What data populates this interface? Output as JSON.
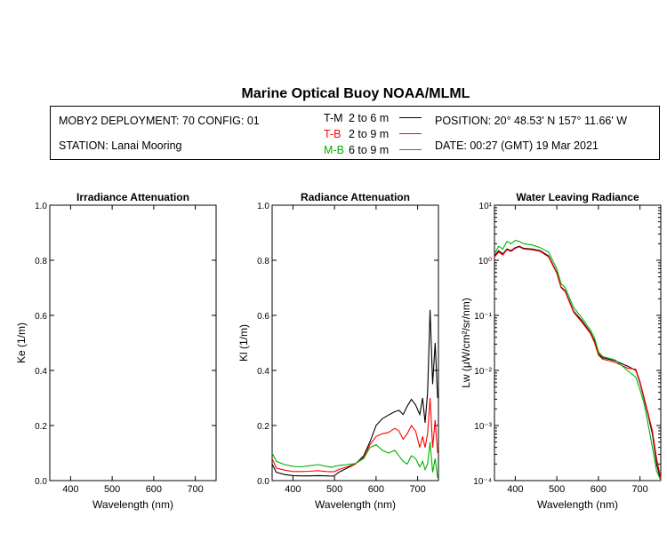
{
  "header": {
    "title": "Marine Optical Buoy NOAA/MLML",
    "deployment": "MOBY2 DEPLOYMENT: 70 CONFIG: 01",
    "station": "STATION: Lanai Mooring",
    "position": "POSITION: 20° 48.53' N   157° 11.66' W",
    "date": "DATE: 00:27 (GMT) 19 Mar 2021"
  },
  "legend": [
    {
      "code": "T-M",
      "range": "2 to 6  m",
      "color": "#000000"
    },
    {
      "code": "T-B",
      "range": "2 to 9  m",
      "color": "#ff0000"
    },
    {
      "code": "M-B",
      "range": "6 to 9  m",
      "color": "#00b000"
    }
  ],
  "chart_data": [
    {
      "type": "line",
      "title": "Irradiance Attenuation",
      "xlabel": "Wavelength (nm)",
      "ylabel": "Ke  (1/m)",
      "xlim": [
        350,
        750
      ],
      "ylim": [
        0,
        1
      ],
      "xticks": [
        "400",
        "500",
        "600",
        "700"
      ],
      "yticks": [
        "0.0",
        "0.2",
        "0.4",
        "0.6",
        "0.8",
        "1.0"
      ],
      "series": []
    },
    {
      "type": "line",
      "title": "Radiance Attenuation",
      "xlabel": "Wavelength (nm)",
      "ylabel": "Kl  (1/m)",
      "xlim": [
        350,
        750
      ],
      "ylim": [
        0,
        1
      ],
      "xticks": [
        "400",
        "500",
        "600",
        "700"
      ],
      "yticks": [
        "0.0",
        "0.2",
        "0.4",
        "0.6",
        "0.8",
        "1.0"
      ],
      "series": [
        {
          "name": "T-M",
          "color": "#000000",
          "x": [
            350,
            360,
            380,
            400,
            420,
            440,
            460,
            480,
            495,
            500,
            510,
            530,
            550,
            570,
            585,
            600,
            615,
            630,
            645,
            655,
            665,
            675,
            685,
            695,
            705,
            712,
            718,
            724,
            730,
            736,
            742,
            748
          ],
          "y": [
            0.06,
            0.03,
            0.022,
            0.018,
            0.017,
            0.017,
            0.018,
            0.017,
            0.016,
            0.018,
            0.03,
            0.045,
            0.06,
            0.09,
            0.14,
            0.2,
            0.225,
            0.238,
            0.25,
            0.255,
            0.24,
            0.27,
            0.295,
            0.275,
            0.24,
            0.3,
            0.21,
            0.32,
            0.62,
            0.35,
            0.5,
            0.3
          ]
        },
        {
          "name": "T-B",
          "color": "#ff0000",
          "x": [
            350,
            360,
            380,
            400,
            420,
            440,
            460,
            480,
            495,
            500,
            510,
            530,
            550,
            570,
            585,
            600,
            615,
            630,
            645,
            655,
            665,
            675,
            685,
            695,
            705,
            712,
            718,
            724,
            730,
            736,
            742,
            748
          ],
          "y": [
            0.08,
            0.045,
            0.038,
            0.033,
            0.033,
            0.034,
            0.036,
            0.033,
            0.032,
            0.033,
            0.04,
            0.05,
            0.06,
            0.085,
            0.13,
            0.16,
            0.17,
            0.175,
            0.19,
            0.18,
            0.15,
            0.17,
            0.2,
            0.18,
            0.12,
            0.16,
            0.12,
            0.17,
            0.3,
            0.12,
            0.22,
            0.1
          ]
        },
        {
          "name": "M-B",
          "color": "#00b000",
          "x": [
            350,
            360,
            380,
            400,
            420,
            440,
            460,
            480,
            495,
            500,
            510,
            530,
            550,
            570,
            585,
            600,
            615,
            630,
            645,
            655,
            665,
            675,
            685,
            695,
            705,
            712,
            718,
            724,
            730,
            736,
            742,
            748
          ],
          "y": [
            0.1,
            0.07,
            0.058,
            0.052,
            0.05,
            0.054,
            0.058,
            0.052,
            0.048,
            0.052,
            0.055,
            0.058,
            0.062,
            0.08,
            0.12,
            0.13,
            0.11,
            0.1,
            0.11,
            0.09,
            0.07,
            0.06,
            0.09,
            0.08,
            0.05,
            0.07,
            0.04,
            0.06,
            0.14,
            0.03,
            0.08,
            0.01
          ]
        }
      ]
    },
    {
      "type": "line",
      "title": "Water Leaving Radiance",
      "xlabel": "Wavelength (nm)",
      "ylabel": "Lw  (μW/cm²/sr/nm)",
      "yscale": "log",
      "xlim": [
        350,
        750
      ],
      "ylim": [
        0.0001,
        10
      ],
      "xticks": [
        "400",
        "500",
        "600",
        "700"
      ],
      "yticks": [
        "10⁻⁴",
        "10⁻³",
        "10⁻²",
        "10⁻¹",
        "10⁰",
        "10¹"
      ],
      "series": [
        {
          "name": "T-M",
          "color": "#000000",
          "x": [
            350,
            360,
            370,
            380,
            390,
            400,
            410,
            420,
            440,
            460,
            480,
            500,
            510,
            520,
            540,
            560,
            580,
            590,
            600,
            610,
            640,
            670,
            690,
            700,
            710,
            720,
            730,
            740,
            750
          ],
          "y": [
            1.2,
            1.5,
            1.3,
            1.6,
            1.5,
            1.7,
            1.8,
            1.65,
            1.6,
            1.5,
            1.2,
            0.6,
            0.33,
            0.28,
            0.12,
            0.08,
            0.05,
            0.035,
            0.02,
            0.017,
            0.015,
            0.012,
            0.01,
            0.006,
            0.003,
            0.0015,
            0.0007,
            0.0002,
            0.0001
          ]
        },
        {
          "name": "T-B",
          "color": "#ff0000",
          "x": [
            350,
            360,
            370,
            380,
            390,
            400,
            410,
            420,
            440,
            460,
            480,
            500,
            510,
            520,
            540,
            560,
            580,
            590,
            600,
            610,
            640,
            670,
            690,
            700,
            710,
            720,
            730,
            740,
            750
          ],
          "y": [
            1.15,
            1.4,
            1.25,
            1.55,
            1.45,
            1.65,
            1.75,
            1.6,
            1.55,
            1.45,
            1.15,
            0.58,
            0.32,
            0.27,
            0.115,
            0.075,
            0.048,
            0.033,
            0.019,
            0.016,
            0.014,
            0.011,
            0.0105,
            0.0063,
            0.0032,
            0.0016,
            0.0008,
            0.00025,
            0.00011
          ]
        },
        {
          "name": "M-B",
          "color": "#00b000",
          "x": [
            350,
            360,
            370,
            380,
            390,
            400,
            410,
            420,
            440,
            460,
            480,
            500,
            510,
            520,
            540,
            560,
            580,
            590,
            600,
            610,
            640,
            670,
            690,
            700,
            710,
            720,
            730,
            740,
            750
          ],
          "y": [
            1.3,
            1.8,
            1.6,
            2.2,
            2.0,
            2.3,
            2.2,
            2.0,
            1.9,
            1.7,
            1.4,
            0.7,
            0.38,
            0.32,
            0.14,
            0.09,
            0.055,
            0.04,
            0.022,
            0.018,
            0.0155,
            0.01,
            0.0075,
            0.0045,
            0.0025,
            0.001,
            0.0004,
            0.00015,
            0.0001
          ]
        }
      ]
    }
  ]
}
